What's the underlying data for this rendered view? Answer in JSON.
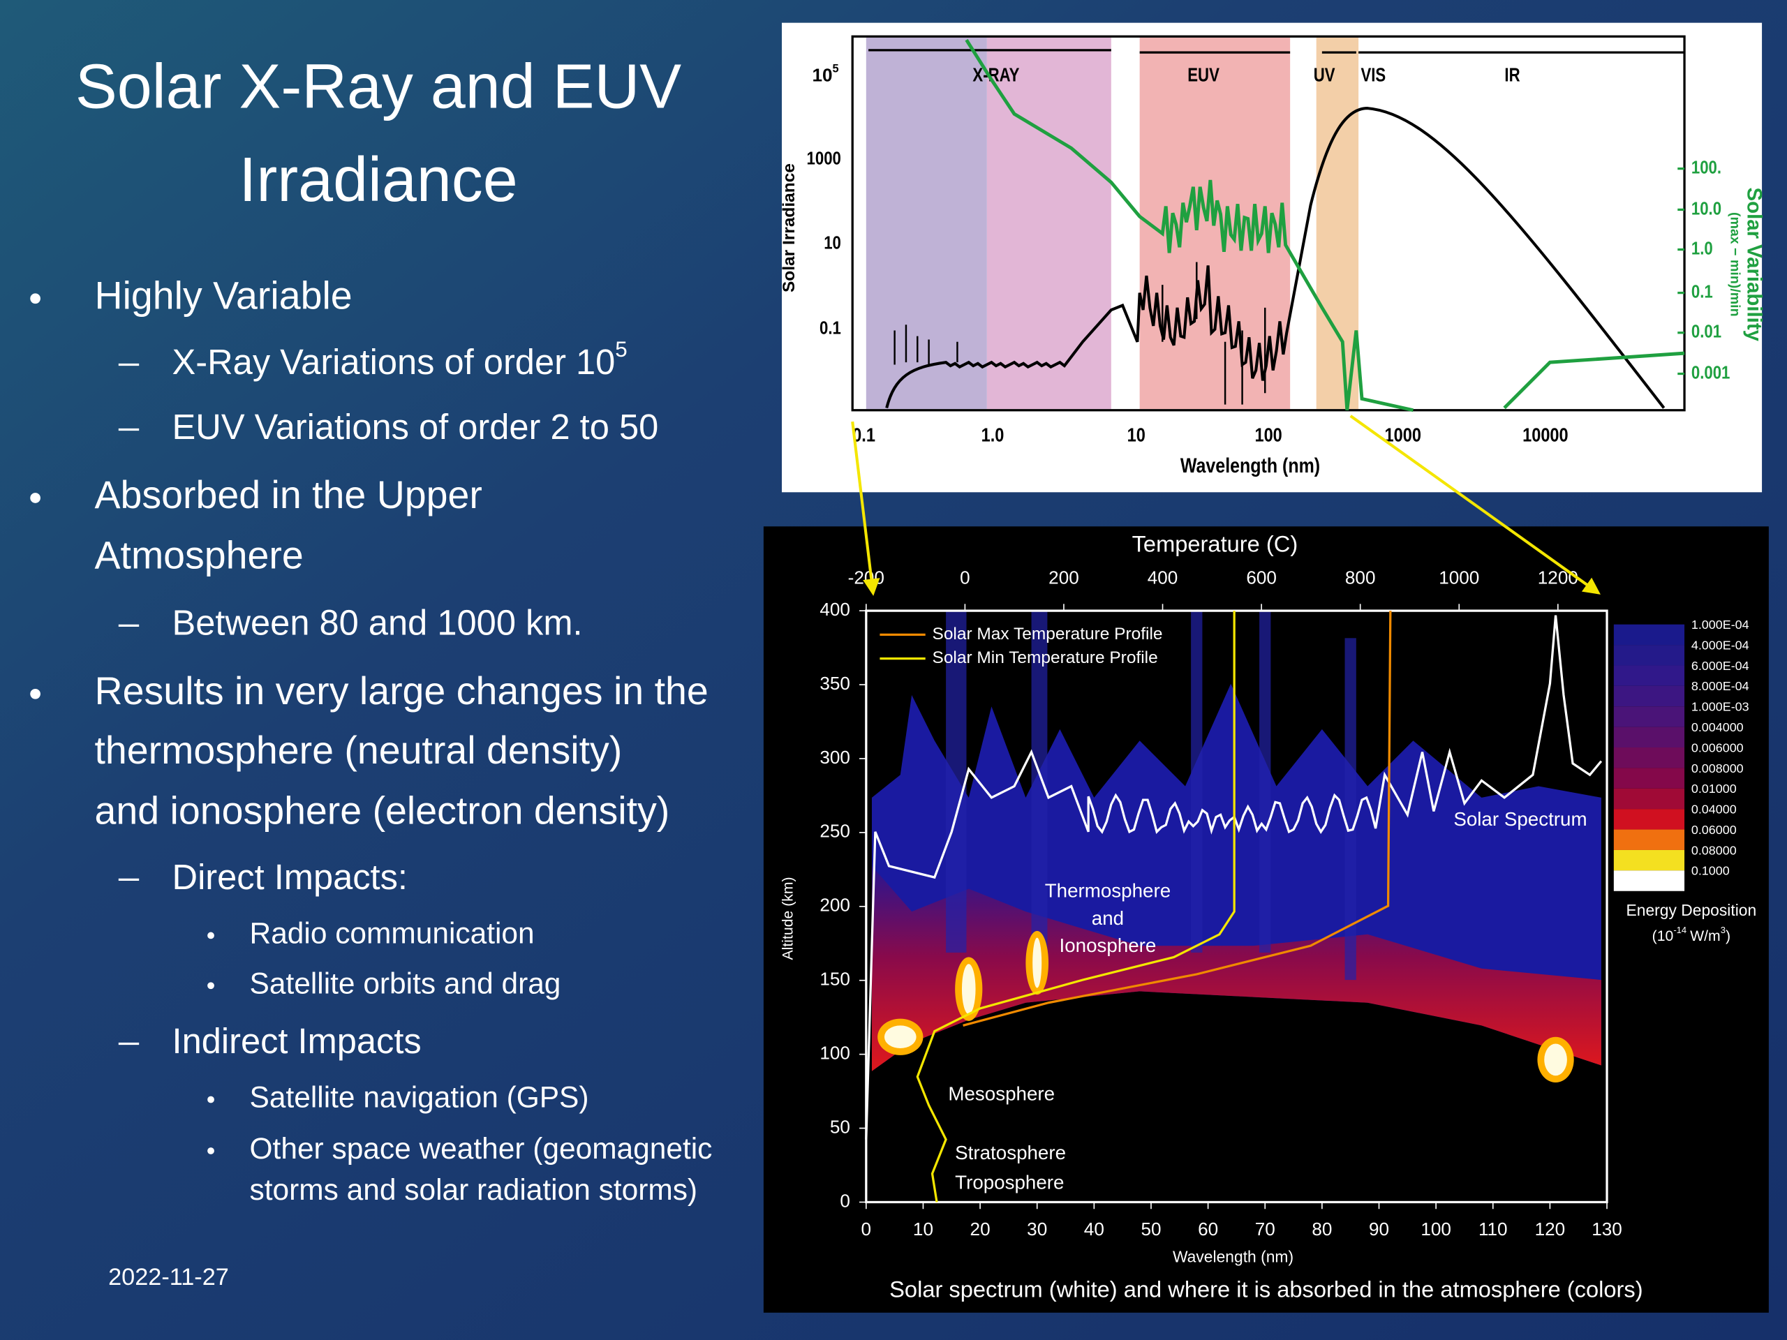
{
  "slide": {
    "title": [
      "Solar X-Ray and EUV",
      "Irradiance"
    ],
    "bullets": [
      {
        "lines": [
          "Highly Variable"
        ],
        "sub": [
          {
            "lines": [
              "X-Ray Variations of order 10"
            ],
            "sup": "5"
          },
          {
            "lines": [
              "EUV Variations of order 2 to 50"
            ]
          }
        ]
      },
      {
        "lines": [
          "Absorbed in the Upper",
          "Atmosphere"
        ],
        "sub": [
          {
            "lines": [
              "Between 80 and 1000 km."
            ]
          }
        ]
      },
      {
        "lines": [
          "Results in very large changes in the",
          "thermosphere (neutral density)",
          "and ionosphere (electron density)"
        ],
        "sub": [
          {
            "lines": [
              "Direct Impacts:"
            ],
            "sub": [
              {
                "lines": [
                  "Radio communication"
                ]
              },
              {
                "lines": [
                  "Satellite orbits and drag"
                ]
              }
            ]
          },
          {
            "lines": [
              "Indirect Impacts"
            ],
            "sub": [
              {
                "lines": [
                  "Satellite navigation (GPS)"
                ]
              },
              {
                "lines": [
                  "Other space weather (geomagnetic",
                  "storms and solar radiation storms)"
                ]
              }
            ]
          }
        ]
      }
    ],
    "date": "2022-11-27"
  },
  "figure_top": {
    "bands": [
      "X-RAY",
      "EUV",
      "UV",
      "VIS",
      "IR"
    ],
    "y_label": "Solar Irradiance",
    "y_tick_top": {
      "base": "10",
      "exp": "5"
    },
    "y_ticks": [
      "1000",
      "10",
      "0.1"
    ],
    "y2_label": "Solar Variability",
    "y2_sublabel": "(max − min)/min",
    "y2_ticks": [
      "100.",
      "10.0",
      "1.0",
      "0.1",
      "0.01",
      "0.001"
    ],
    "x_ticks": [
      "0.1",
      "1.0",
      "10",
      "100",
      "1000",
      "10000"
    ],
    "x_label": "Wavelength (nm)"
  },
  "figure_bottom": {
    "top_axis_label": "Temperature (C)",
    "top_ticks": [
      "-200",
      "0",
      "200",
      "400",
      "600",
      "800",
      "1000",
      "1200"
    ],
    "y_label": "Altitude (km)",
    "y_ticks": [
      "0",
      "50",
      "100",
      "150",
      "200",
      "250",
      "300",
      "350",
      "400"
    ],
    "x_ticks": [
      "0",
      "10",
      "20",
      "30",
      "40",
      "50",
      "60",
      "70",
      "80",
      "90",
      "100",
      "110",
      "120",
      "130"
    ],
    "x_label": "Wavelength (nm)",
    "legend": [
      "Solar Max Temperature Profile",
      "Solar Min Temperature Profile"
    ],
    "annotations": {
      "spectrum": "Solar Spectrum",
      "thermosphere": [
        "Thermosphere",
        "and",
        "Ionosphere"
      ],
      "mesosphere": "Mesosphere",
      "stratosphere": "Stratosphere",
      "troposphere": "Troposphere"
    },
    "colorbar": {
      "labels": [
        "1.000E-04",
        "4.000E-04",
        "6.000E-04",
        "8.000E-04",
        "1.000E-03",
        "0.004000",
        "0.006000",
        "0.008000",
        "0.01000",
        "0.04000",
        "0.06000",
        "0.08000",
        "0.1000"
      ],
      "title": "Energy Deposition",
      "units": [
        "(10",
        "-14",
        "W/m",
        "3",
        ")"
      ]
    },
    "caption": "Solar spectrum (white) and where it is absorbed in the atmosphere (colors)"
  }
}
